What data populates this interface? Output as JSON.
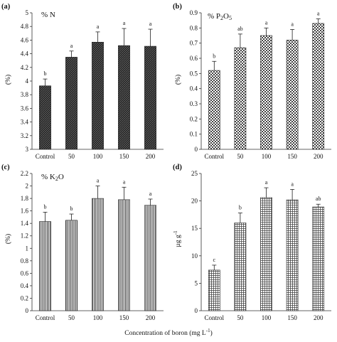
{
  "x_axis_label": "Concentration of boron (mg L",
  "x_axis_label_sup": "-1",
  "x_axis_label_close": ")",
  "chart_data": [
    {
      "type": "bar",
      "panel": "(a)",
      "title": "% N",
      "ylabel": "(%)",
      "categories": [
        "Control",
        "50",
        "100",
        "150",
        "200"
      ],
      "values": [
        3.93,
        4.35,
        4.57,
        4.52,
        4.51
      ],
      "errors": [
        0.1,
        0.09,
        0.15,
        0.25,
        0.25
      ],
      "significance": [
        "b",
        "a",
        "a",
        "a",
        "a"
      ],
      "ylim": [
        3,
        5
      ],
      "yticks": [
        3,
        3.2,
        3.4,
        3.6,
        3.8,
        4,
        4.2,
        4.4,
        4.6,
        4.8,
        5
      ],
      "ytick_labels": [
        "3",
        "3.2",
        "3.4",
        "3.6",
        "3.8",
        "4",
        "4.2",
        "4.4",
        "4.6",
        "4.8",
        "5"
      ],
      "pattern": "dense-diagonal"
    },
    {
      "type": "bar",
      "panel": "(b)",
      "title": "% P2O5",
      "title_main": "% P",
      "title_sub1": "2",
      "title_mid": "O",
      "title_sub2": "5",
      "ylabel": "(%)",
      "categories": [
        "Control",
        "50",
        "100",
        "150",
        "200"
      ],
      "values": [
        0.52,
        0.67,
        0.75,
        0.72,
        0.83
      ],
      "errors": [
        0.06,
        0.09,
        0.05,
        0.07,
        0.03
      ],
      "significance": [
        "b",
        "ab",
        "a",
        "a",
        "a"
      ],
      "ylim": [
        0,
        0.9
      ],
      "yticks": [
        0,
        0.1,
        0.2,
        0.3,
        0.4,
        0.5,
        0.6,
        0.7,
        0.8,
        0.9
      ],
      "ytick_labels": [
        "0",
        "0.1",
        "0.2",
        "0.3",
        "0.4",
        "0.5",
        "0.6",
        "0.7",
        "0.8",
        "0.9"
      ],
      "pattern": "checker"
    },
    {
      "type": "bar",
      "panel": "(c)",
      "title": "% K2O",
      "title_main": "% K",
      "title_sub1": "2",
      "title_mid": "O",
      "ylabel": "(%)",
      "categories": [
        "Control",
        "50",
        "100",
        "150",
        "200"
      ],
      "values": [
        1.43,
        1.45,
        1.8,
        1.78,
        1.69
      ],
      "errors": [
        0.15,
        0.1,
        0.2,
        0.2,
        0.1
      ],
      "significance": [
        "b",
        "b",
        "a",
        "a",
        "a"
      ],
      "ylim": [
        0,
        2.2
      ],
      "yticks": [
        0,
        0.2,
        0.4,
        0.6,
        0.8,
        1,
        1.2,
        1.4,
        1.6,
        1.8,
        2,
        2.2
      ],
      "ytick_labels": [
        "0",
        "0.2",
        "0.4",
        "0.6",
        "0.8",
        "1",
        "1.2",
        "1.4",
        "1.6",
        "1.8",
        "2",
        "2.2"
      ],
      "pattern": "vertical-lines"
    },
    {
      "type": "bar",
      "panel": "(d)",
      "title": "",
      "ylabel": "µg g",
      "ylabel_sup": "-1",
      "categories": [
        "Control",
        "50",
        "100",
        "150",
        "200"
      ],
      "values": [
        7.4,
        16.0,
        20.6,
        20.2,
        18.9
      ],
      "errors": [
        0.9,
        1.8,
        1.8,
        1.9,
        0.5
      ],
      "significance": [
        "c",
        "b",
        "a",
        "a",
        "ab"
      ],
      "ylim": [
        0,
        25
      ],
      "yticks": [
        0,
        5,
        10,
        15,
        20,
        25
      ],
      "ytick_labels": [
        "0",
        "5",
        "10",
        "15",
        "20",
        "25"
      ],
      "pattern": "grid"
    }
  ]
}
